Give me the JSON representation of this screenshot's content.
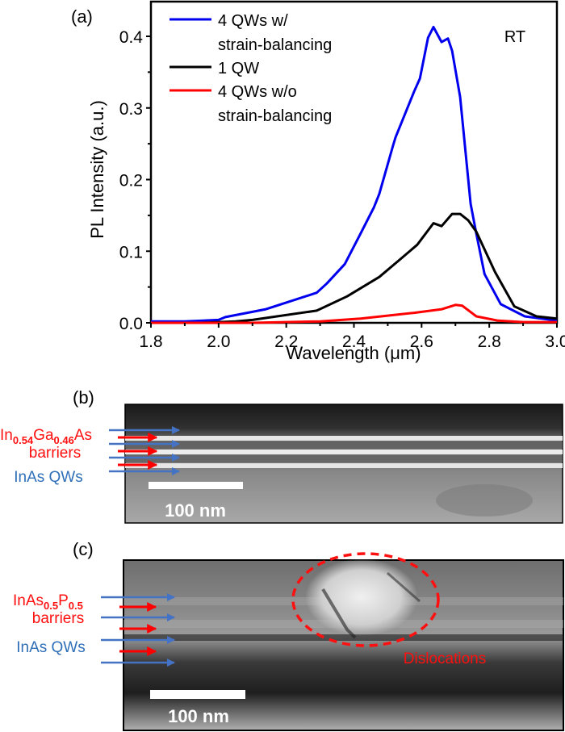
{
  "panels": {
    "a": {
      "label": "(a)"
    },
    "b": {
      "label": "(b)",
      "barrier_label_main": "In",
      "barrier_sub1": "0.54",
      "barrier_mid": "Ga",
      "barrier_sub2": "0.46",
      "barrier_end": "As",
      "barrier_label_2": "barriers",
      "qw_label": "InAs QWs",
      "scale_bar": "100 nm"
    },
    "c": {
      "label": "(c)",
      "barrier_label_main": "InAs",
      "barrier_sub1": "0.5",
      "barrier_mid": "P",
      "barrier_sub2": "0.5",
      "barrier_label_2": "barriers",
      "qw_label": "InAs QWs",
      "scale_bar": "100 nm",
      "annotation": "Dislocations"
    }
  },
  "colors": {
    "blue_series": "#0000ee",
    "black_series": "#000000",
    "red_series": "#ff0000",
    "barrier_text": "#ff1010",
    "qw_text": "#2f6fb8",
    "qw_arrow": "#4472c4",
    "barrier_arrow": "#ff0000"
  },
  "chart_data": {
    "type": "line",
    "title": "",
    "annotation": "RT",
    "xlabel": "Wavelength (μm)",
    "ylabel": "PL Intensity (a.u.)",
    "xlim": [
      1.8,
      3.0
    ],
    "ylim": [
      0.0,
      0.45
    ],
    "xticks": [
      "1.8",
      "2.0",
      "2.2",
      "2.4",
      "2.6",
      "2.8",
      "3.0"
    ],
    "yticks": [
      "0.0",
      "0.1",
      "0.2",
      "0.3",
      "0.4"
    ],
    "grid": false,
    "legend_position": "top-left",
    "series": [
      {
        "name": "4 QWs w/ strain-balancing",
        "legend_lines": [
          "4 QWs w/",
          "strain-balancing"
        ],
        "color": "#0000ee",
        "x": [
          1.8,
          1.9,
          2.0,
          2.02,
          2.14,
          2.29,
          2.32,
          2.373,
          2.42,
          2.459,
          2.475,
          2.516,
          2.523,
          2.578,
          2.595,
          2.619,
          2.635,
          2.659,
          2.678,
          2.69,
          2.714,
          2.745,
          2.762,
          2.786,
          2.834,
          2.905,
          3.0
        ],
        "y": [
          0.002,
          0.002,
          0.004,
          0.008,
          0.019,
          0.042,
          0.055,
          0.082,
          0.125,
          0.161,
          0.18,
          0.248,
          0.259,
          0.323,
          0.341,
          0.398,
          0.413,
          0.392,
          0.397,
          0.38,
          0.315,
          0.166,
          0.124,
          0.068,
          0.026,
          0.009,
          0.003
        ]
      },
      {
        "name": "1 QW",
        "legend_lines": [
          "1 QW"
        ],
        "color": "#000000",
        "x": [
          1.8,
          1.95,
          2.05,
          2.1,
          2.29,
          2.38,
          2.475,
          2.54,
          2.587,
          2.635,
          2.659,
          2.69,
          2.714,
          2.738,
          2.762,
          2.817,
          2.874,
          2.94,
          3.0
        ],
        "y": [
          0.0,
          0.0,
          0.002,
          0.004,
          0.017,
          0.037,
          0.064,
          0.09,
          0.109,
          0.139,
          0.135,
          0.152,
          0.152,
          0.143,
          0.127,
          0.071,
          0.023,
          0.009,
          0.006
        ]
      },
      {
        "name": "4 QWs w/o strain-balancing",
        "legend_lines": [
          "4 QWs w/o",
          "strain-balancing"
        ],
        "color": "#ff0000",
        "x": [
          1.8,
          2.1,
          2.3,
          2.42,
          2.578,
          2.66,
          2.7,
          2.72,
          2.762,
          2.826,
          2.9,
          3.0
        ],
        "y": [
          0.0,
          0.0,
          0.002,
          0.006,
          0.014,
          0.019,
          0.025,
          0.024,
          0.009,
          0.003,
          0.001,
          0.001
        ]
      }
    ]
  }
}
